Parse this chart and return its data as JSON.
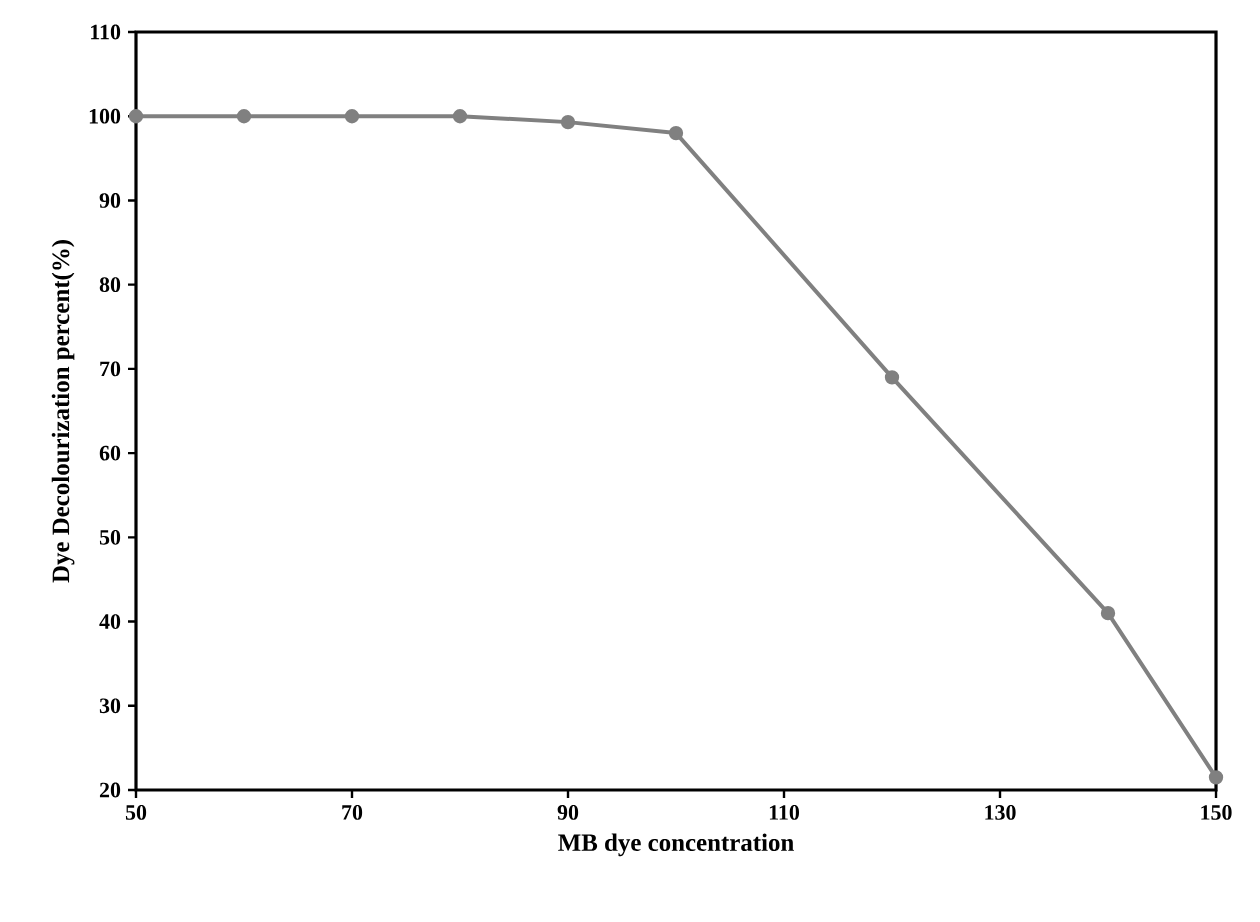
{
  "chart_data": {
    "type": "line",
    "xlabel": "MB dye concentration",
    "ylabel": "Dye Decolourization percent(%)",
    "x": [
      50,
      60,
      70,
      80,
      90,
      100,
      120,
      140,
      150
    ],
    "series": [
      {
        "color": "#808080",
        "values": [
          100,
          100,
          100,
          100,
          99.3,
          98,
          69,
          41,
          21.5
        ]
      }
    ],
    "xlim": [
      50,
      150
    ],
    "xticks": [
      50,
      70,
      90,
      110,
      130,
      150
    ],
    "ylim": [
      20,
      110
    ],
    "yticks": [
      20,
      30,
      40,
      50,
      60,
      70,
      80,
      90,
      100,
      110
    ],
    "marker": "circle",
    "line_style": "solid"
  }
}
